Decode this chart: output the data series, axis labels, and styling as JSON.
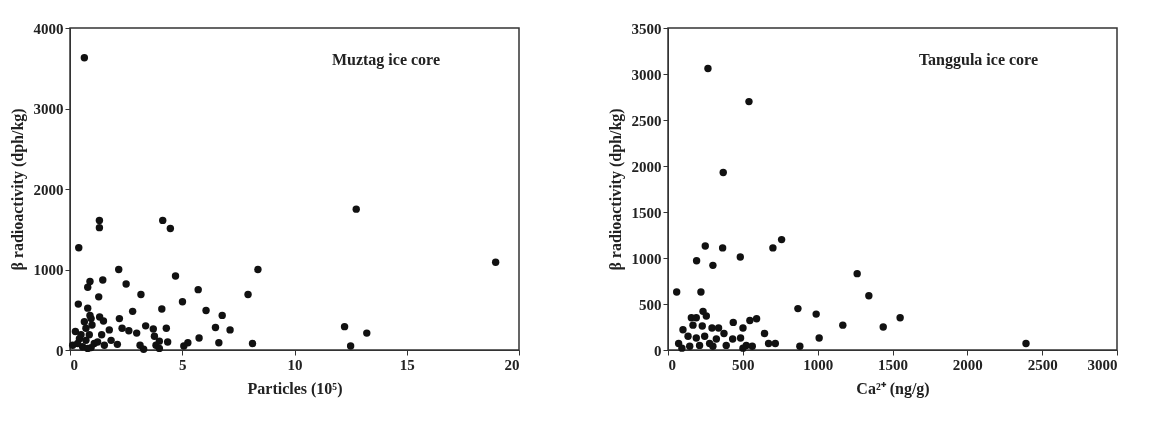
{
  "chart_data": [
    {
      "type": "scatter",
      "xlabel": "Particles (10⁵)",
      "ylabel": "β radioactivity (dph/kg)",
      "annotations": [
        "Muztag ice core"
      ],
      "xlim": [
        0,
        20
      ],
      "xticks": [
        0,
        5,
        10,
        15,
        20
      ],
      "ylim": [
        0,
        4000
      ],
      "yticks": [
        0,
        1000,
        2000,
        3000,
        4000
      ],
      "grid": false,
      "marker": "circle",
      "series": [
        {
          "color": "#111111",
          "x": [
            0.64,
            0.39,
            1.31,
            1.31,
            4.13,
            4.47,
            12.75,
            18.96,
            2.17,
            8.37,
            0.89,
            0.79,
            1.46,
            2.5,
            4.7,
            1.28,
            3.16,
            5.71,
            7.93,
            5.01,
            0.37,
            0.79,
            4.09,
            2.79,
            6.06,
            0.89,
            1.32,
            6.78,
            2.2,
            0.64,
            1.49,
            0.98,
            3.37,
            6.48,
            12.23,
            2.32,
            3.71,
            4.29,
            7.13,
            1.75,
            0.24,
            2.62,
            2.97,
            13.22,
            1.41,
            3.76,
            5.75,
            0.42,
            0.71,
            1.83,
            3.98,
            4.35,
            5.25,
            6.63,
            8.13,
            2.11,
            3.12,
            3.83,
            5.07,
            12.5,
            0.12,
            1.08,
            0.56,
            0.94,
            3.28,
            3.98,
            0.79,
            0.34,
            1.23,
            1.53,
            0.86,
            0.49,
            0.71,
            0.94
          ],
          "values": [
            3630,
            1270,
            1610,
            1520,
            1610,
            1510,
            1750,
            1090,
            1000,
            1000,
            850,
            780,
            870,
            820,
            920,
            660,
            690,
            750,
            690,
            600,
            570,
            520,
            510,
            480,
            490,
            430,
            410,
            430,
            390,
            350,
            360,
            310,
            300,
            280,
            290,
            270,
            260,
            270,
            250,
            250,
            230,
            240,
            210,
            210,
            190,
            170,
            150,
            140,
            120,
            120,
            110,
            100,
            90,
            90,
            80,
            70,
            60,
            60,
            50,
            50,
            60,
            80,
            40,
            30,
            10,
            20,
            20,
            80,
            100,
            60,
            190,
            190,
            270,
            390
          ]
        }
      ]
    },
    {
      "type": "scatter",
      "xlabel": "Ca²⁺ (ng/g)",
      "ylabel": "β radioactivity (dph/kg)",
      "annotations": [
        "Tanggula ice core"
      ],
      "xlim": [
        0,
        3000
      ],
      "xticks": [
        0,
        500,
        1000,
        1500,
        2000,
        2500,
        3000
      ],
      "ylim": [
        0,
        3500
      ],
      "yticks": [
        0,
        500,
        1000,
        1500,
        2000,
        2500,
        3000,
        3500
      ],
      "grid": false,
      "marker": "circle",
      "series": [
        {
          "color": "#111111",
          "x": [
            267,
            541,
            369,
            249,
            365,
            191,
            300,
            483,
            701,
            759,
            58,
            220,
            1264,
            1342,
            868,
            990,
            1551,
            1168,
            1438,
            1010,
            2392,
            881,
            645,
            672,
            717,
            547,
            592,
            436,
            501,
            485,
            432,
            563,
            523,
            100,
            71,
            93,
            156,
            189,
            167,
            234,
            256,
            229,
            294,
            338,
            374,
            323,
            300,
            134,
            189,
            245,
            278,
            211,
            145,
            389,
            501
          ],
          "values": [
            3060,
            2700,
            1930,
            1130,
            1110,
            970,
            920,
            1010,
            1110,
            1200,
            630,
            630,
            830,
            590,
            450,
            390,
            350,
            270,
            250,
            130,
            70,
            40,
            180,
            70,
            70,
            320,
            340,
            300,
            240,
            130,
            120,
            40,
            50,
            220,
            70,
            20,
            350,
            350,
            270,
            420,
            370,
            260,
            240,
            240,
            180,
            120,
            40,
            150,
            130,
            150,
            70,
            50,
            40,
            50,
            20
          ]
        }
      ]
    }
  ]
}
